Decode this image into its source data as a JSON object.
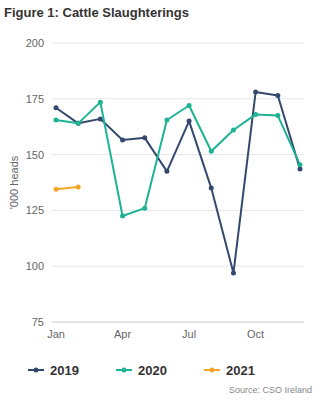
{
  "chart_data": {
    "type": "line",
    "title": "Figure 1: Cattle Slaughterings",
    "y_label": "'000 heads",
    "source": "Source: CSO Ireland",
    "categories": [
      "Jan",
      null,
      null,
      "Apr",
      null,
      null,
      "Jul",
      null,
      null,
      "Oct",
      null,
      null
    ],
    "series": [
      {
        "name": "2019",
        "color": "#34496e",
        "marker": "circle",
        "values": [
          171,
          164,
          166,
          156.5,
          157.5,
          142.5,
          165,
          135,
          97,
          178,
          176.5,
          143.5
        ]
      },
      {
        "name": "2020",
        "color": "#1db394",
        "marker": "circle",
        "values": [
          165.5,
          164,
          173.5,
          122.5,
          126,
          165.5,
          172,
          151.5,
          161,
          168,
          167.5,
          145.5
        ]
      },
      {
        "name": "2021",
        "color": "#f5a62a",
        "marker": "circle",
        "values": [
          134.5,
          135.5,
          null,
          null,
          null,
          null,
          null,
          null,
          null,
          null,
          null,
          null
        ]
      }
    ],
    "ylim": [
      75,
      200
    ],
    "yticks": [
      75,
      100,
      125,
      150,
      175,
      200
    ],
    "grid": true,
    "legend": "bottom"
  }
}
